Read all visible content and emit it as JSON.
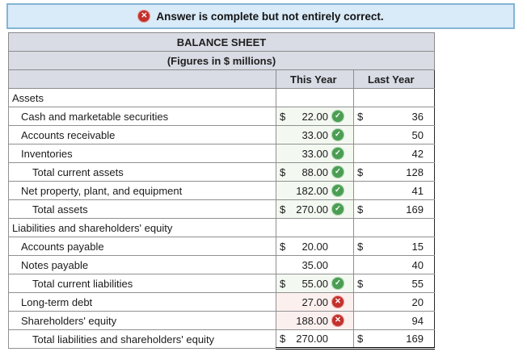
{
  "alert": {
    "text": "Answer is complete but not entirely correct.",
    "icon": "x-circle-icon",
    "bg_color": "#d9eaf8",
    "border_color": "#84b4d4",
    "icon_color": "#c4302b"
  },
  "table": {
    "title": "BALANCE SHEET",
    "subtitle": "(Figures in $ millions)",
    "columns": {
      "this_year": "This Year",
      "last_year": "Last Year"
    },
    "rows": [
      {
        "label": "Assets",
        "indent": 0,
        "type": "section",
        "this_dollar": "",
        "this_value": "",
        "status": "none",
        "last_dollar": "",
        "last_value": ""
      },
      {
        "label": "Cash and marketable securities",
        "indent": 1,
        "type": "item",
        "this_dollar": "$",
        "this_value": "22.00",
        "status": "correct",
        "last_dollar": "$",
        "last_value": "36"
      },
      {
        "label": "Accounts receivable",
        "indent": 1,
        "type": "item",
        "this_dollar": "",
        "this_value": "33.00",
        "status": "correct",
        "last_dollar": "",
        "last_value": "50"
      },
      {
        "label": "Inventories",
        "indent": 1,
        "type": "item",
        "this_dollar": "",
        "this_value": "33.00",
        "status": "correct",
        "last_dollar": "",
        "last_value": "42"
      },
      {
        "label": "Total current assets",
        "indent": 2,
        "type": "total",
        "this_dollar": "$",
        "this_value": "88.00",
        "status": "correct",
        "last_dollar": "$",
        "last_value": "128"
      },
      {
        "label": "Net property, plant, and equipment",
        "indent": 1,
        "type": "item",
        "this_dollar": "",
        "this_value": "182.00",
        "status": "correct",
        "last_dollar": "",
        "last_value": "41"
      },
      {
        "label": "Total assets",
        "indent": 2,
        "type": "total",
        "this_dollar": "$",
        "this_value": "270.00",
        "status": "correct",
        "last_dollar": "$",
        "last_value": "169"
      },
      {
        "label": "Liabilities and shareholders' equity",
        "indent": 0,
        "type": "section",
        "this_dollar": "",
        "this_value": "",
        "status": "none",
        "last_dollar": "",
        "last_value": ""
      },
      {
        "label": "Accounts payable",
        "indent": 1,
        "type": "item",
        "this_dollar": "$",
        "this_value": "20.00",
        "status": "none",
        "last_dollar": "$",
        "last_value": "15"
      },
      {
        "label": "Notes payable",
        "indent": 1,
        "type": "item",
        "this_dollar": "",
        "this_value": "35.00",
        "status": "none",
        "last_dollar": "",
        "last_value": "40"
      },
      {
        "label": "Total current liabilities",
        "indent": 2,
        "type": "total",
        "this_dollar": "$",
        "this_value": "55.00",
        "status": "correct",
        "last_dollar": "$",
        "last_value": "55"
      },
      {
        "label": "Long-term debt",
        "indent": 1,
        "type": "item",
        "this_dollar": "",
        "this_value": "27.00",
        "status": "incorrect",
        "last_dollar": "",
        "last_value": "20"
      },
      {
        "label": "Shareholders' equity",
        "indent": 1,
        "type": "item",
        "this_dollar": "",
        "this_value": "188.00",
        "status": "incorrect",
        "last_dollar": "",
        "last_value": "94"
      },
      {
        "label": "Total liabilities and shareholders' equity",
        "indent": 2,
        "type": "grand_total",
        "this_dollar": "$",
        "this_value": "270.00",
        "status": "none",
        "last_dollar": "$",
        "last_value": "169"
      }
    ]
  },
  "colors": {
    "correct_cell_bg": "#f3f8f1",
    "incorrect_cell_bg": "#fcf0ef",
    "correct_icon": "#4a9e52",
    "incorrect_icon": "#c4302b",
    "header_bg": "#d9dce5"
  },
  "icons": {
    "correct": "check-circle-icon",
    "incorrect": "x-circle-icon",
    "check_glyph": "✓",
    "x_glyph": "✕"
  }
}
